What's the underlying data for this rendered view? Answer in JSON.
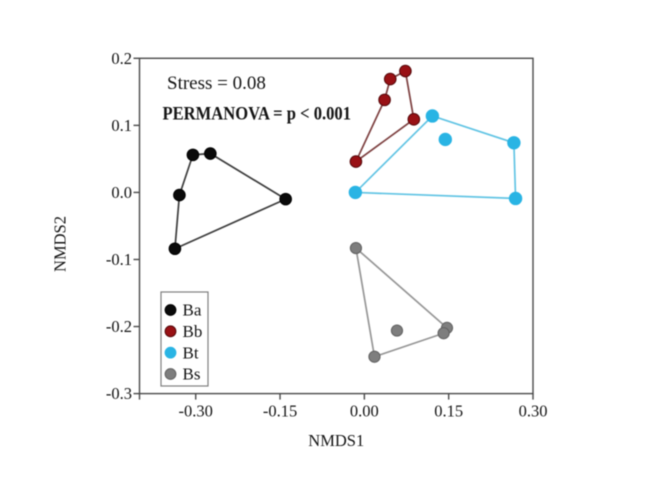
{
  "figure": {
    "kind": "NMDS ordination scatter plot with group convex hulls",
    "background_color": "#ffffff"
  },
  "chart_data": {
    "type": "scatter",
    "title": "",
    "xlabel": "NMDS1",
    "ylabel": "NMDS2",
    "xlim": [
      -0.4,
      0.3
    ],
    "ylim": [
      -0.3,
      0.2
    ],
    "grid": false,
    "x_ticks": [
      -0.3,
      -0.15,
      0.0,
      0.15,
      0.3
    ],
    "x_tick_labels": [
      "-0.30",
      "-0.15",
      "0.00",
      "0.15",
      "0.30"
    ],
    "y_ticks": [
      0.2,
      0.1,
      0.0,
      -0.1,
      -0.2,
      -0.3
    ],
    "y_tick_labels": [
      "0.2",
      "0.1",
      "0.0",
      "-0.1",
      "-0.2",
      "-0.3"
    ],
    "annotations": [
      {
        "id": "stress",
        "text": "Stress = 0.08",
        "bold": false
      },
      {
        "id": "permanova",
        "text": "PERMANOVA = p < 0.001",
        "bold": true
      }
    ],
    "legend": {
      "position": "inside-bottom-left",
      "entries": [
        {
          "label": "Ba",
          "series": "Ba"
        },
        {
          "label": "Bb",
          "series": "Bb"
        },
        {
          "label": "Bt",
          "series": "Bt"
        },
        {
          "label": "Bs",
          "series": "Bs"
        }
      ]
    },
    "series": [
      {
        "name": "Ba",
        "marker_color": "#0a0a0a",
        "marker_edge": "#000000",
        "line_color": "#3d3d3d",
        "marker_radius": 5.8,
        "points": [
          [
            -0.305,
            0.056
          ],
          [
            -0.274,
            0.058
          ],
          [
            -0.329,
            -0.004
          ],
          [
            -0.14,
            -0.01
          ],
          [
            -0.337,
            -0.084
          ]
        ],
        "hull": [
          2,
          0,
          1,
          3,
          4
        ]
      },
      {
        "name": "Bb",
        "marker_color": "#991115",
        "marker_edge": "#55080a",
        "line_color": "#7d4040",
        "marker_radius": 5.8,
        "points": [
          [
            0.073,
            0.181
          ],
          [
            0.046,
            0.169
          ],
          [
            0.036,
            0.138
          ],
          [
            0.088,
            0.109
          ],
          [
            -0.015,
            0.046
          ]
        ],
        "hull": [
          4,
          2,
          1,
          0,
          3
        ]
      },
      {
        "name": "Bt",
        "marker_color": "#29b4e4",
        "marker_edge": "#29b4e4",
        "line_color": "#61c4e4",
        "marker_radius": 6.2,
        "points": [
          [
            0.121,
            0.114
          ],
          [
            0.144,
            0.079
          ],
          [
            0.266,
            0.074
          ],
          [
            -0.016,
            0.0
          ],
          [
            0.269,
            -0.009
          ]
        ],
        "hull": [
          3,
          0,
          2,
          4
        ]
      },
      {
        "name": "Bs",
        "marker_color": "#7e7e7e",
        "marker_edge": "#616161",
        "line_color": "#969696",
        "marker_radius": 5.6,
        "points": [
          [
            -0.015,
            -0.083
          ],
          [
            0.058,
            -0.206
          ],
          [
            0.147,
            -0.202
          ],
          [
            0.141,
            -0.21
          ],
          [
            0.018,
            -0.245
          ]
        ],
        "hull": [
          0,
          2,
          3,
          4
        ]
      }
    ]
  }
}
